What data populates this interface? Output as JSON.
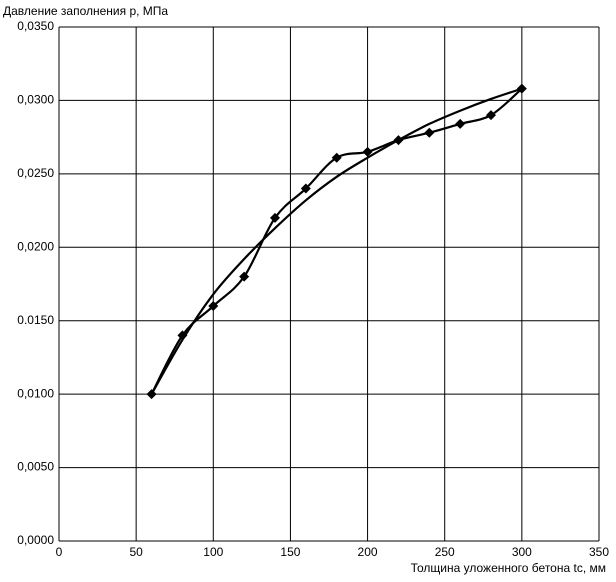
{
  "chart_data": {
    "type": "line",
    "y_label": "Давление заполнения p, МПа",
    "x_label": "Толщина уложенного бетона tc, мм",
    "xlim": [
      0,
      350
    ],
    "xticks": [
      0,
      50,
      100,
      150,
      200,
      250,
      300,
      350
    ],
    "ylim": [
      0,
      0.035
    ],
    "yticks": [
      {
        "value": 0,
        "label": "0,0000"
      },
      {
        "value": 0.005,
        "label": "0,0050"
      },
      {
        "value": 0.01,
        "label": "0,0100"
      },
      {
        "value": 0.015,
        "label": "0.0150"
      },
      {
        "value": 0.02,
        "label": "0,0200"
      },
      {
        "value": 0.025,
        "label": "0,0250"
      },
      {
        "value": 0.03,
        "label": "0,0300"
      },
      {
        "value": 0.035,
        "label": "0,0350"
      }
    ],
    "grid": true,
    "series": [
      {
        "color": "#000000",
        "markers": true,
        "x": [
          60,
          80,
          100,
          120,
          140,
          160,
          180,
          200,
          220,
          240,
          260,
          280,
          300
        ],
        "values": [
          0.01,
          0.014,
          0.016,
          0.018,
          0.022,
          0.024,
          0.0261,
          0.0265,
          0.0273,
          0.0278,
          0.0284,
          0.029,
          0.0308
        ]
      },
      {
        "color": "#000000",
        "markers": false,
        "x": [
          60,
          80,
          100,
          120,
          140,
          160,
          180,
          200,
          220,
          240,
          260,
          280,
          300
        ],
        "values": [
          0.01,
          0.0137,
          0.0168,
          0.0192,
          0.0213,
          0.0232,
          0.0248,
          0.0261,
          0.0273,
          0.0284,
          0.0293,
          0.0301,
          0.0308
        ]
      }
    ]
  }
}
